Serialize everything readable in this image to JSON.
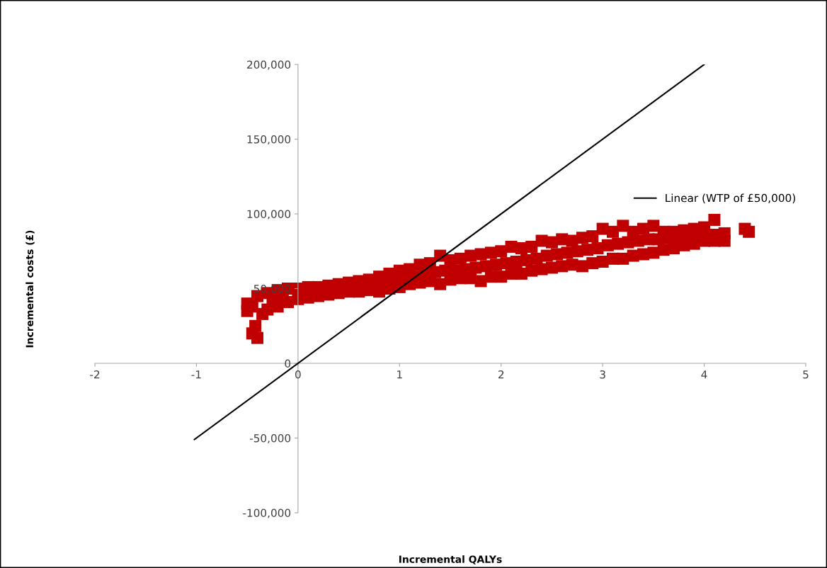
{
  "chart_data": {
    "type": "scatter",
    "xlabel": "Incremental QALYs",
    "annotations": [
      "Incremental costs (£)"
    ],
    "xlim": [
      -2,
      5
    ],
    "xticks": [
      -2,
      -1,
      0,
      1,
      2,
      3,
      4,
      5
    ],
    "ylim": [
      -100000,
      200000
    ],
    "yticks": [
      {
        "value": -100000,
        "label": "-100,000"
      },
      {
        "value": -50000,
        "label": "-50,000"
      },
      {
        "value": 0,
        "label": "0"
      },
      {
        "value": 50000,
        "label": "50,000"
      },
      {
        "value": 100000,
        "label": "100,000"
      },
      {
        "value": 150000,
        "label": "150,000"
      },
      {
        "value": 200000,
        "label": "200,000"
      }
    ],
    "grid": false,
    "legend": "right",
    "series": [
      {
        "color": "#c00000",
        "marker": "square",
        "x": [
          -0.3,
          -0.2,
          -0.1,
          0,
          0.1,
          0.2,
          0.3,
          0.4,
          0.5,
          0.6,
          0.7,
          0.8,
          0.9,
          1.0,
          1.1,
          1.2,
          1.3,
          1.4,
          1.5,
          1.6,
          1.7,
          1.8,
          1.9,
          2.0,
          2.1,
          2.2,
          2.3,
          2.4,
          2.5,
          2.6,
          2.7,
          2.8,
          2.9,
          3.0,
          3.1,
          3.2,
          3.3,
          3.4,
          3.5,
          3.6,
          3.7,
          3.8,
          3.9,
          4.0,
          4.1,
          4.2,
          -0.3,
          -0.2,
          -0.1,
          0,
          0.1,
          0.2,
          0.3,
          0.4,
          0.5,
          0.6,
          0.7,
          0.8,
          0.9,
          1.0,
          1.1,
          1.2,
          1.3,
          1.4,
          1.5,
          1.6,
          1.7,
          1.8,
          1.9,
          2.0,
          2.1,
          2.2,
          2.3,
          2.4,
          2.5,
          2.6,
          2.7,
          2.8,
          2.9,
          3.0,
          3.1,
          3.2,
          3.3,
          3.4,
          3.5,
          3.6,
          3.7,
          3.8,
          3.9,
          4.0,
          4.1,
          4.2,
          -0.25,
          -0.15,
          0.75,
          0.85,
          0.95,
          1.05,
          1.15,
          1.25,
          1.35,
          1.45,
          1.55,
          1.65,
          1.75,
          1.85,
          1.95,
          2.05,
          2.15,
          2.25,
          2.35,
          2.45,
          2.55,
          2.65,
          2.75,
          2.85,
          2.95,
          3.05,
          3.15,
          3.25,
          3.35,
          3.45,
          3.55,
          3.65,
          3.75,
          3.85,
          3.95,
          4.05,
          4.15,
          -0.5,
          -0.5,
          -0.45,
          -0.4,
          -0.42,
          -0.45,
          -0.4,
          -0.35,
          4.4,
          4.44
        ],
        "values": [
          47000,
          49000,
          50000,
          50000,
          51000,
          51000,
          52000,
          53000,
          54000,
          55000,
          56000,
          58000,
          60000,
          62000,
          63000,
          66000,
          67000,
          72000,
          69000,
          70000,
          72000,
          73000,
          74000,
          75000,
          78000,
          77000,
          78000,
          82000,
          81000,
          83000,
          82000,
          84000,
          85000,
          90000,
          88000,
          92000,
          88000,
          90000,
          92000,
          88000,
          88000,
          89000,
          90000,
          91000,
          96000,
          87000,
          36000,
          38000,
          41000,
          43000,
          44000,
          45000,
          46000,
          47000,
          48000,
          48000,
          49000,
          48000,
          50000,
          51000,
          53000,
          54000,
          55000,
          53000,
          56000,
          57000,
          57000,
          55000,
          58000,
          58000,
          60000,
          60000,
          62000,
          63000,
          64000,
          65000,
          66000,
          65000,
          67000,
          68000,
          70000,
          70000,
          72000,
          73000,
          74000,
          76000,
          77000,
          79000,
          80000,
          82000,
          82000,
          82000,
          42000,
          44000,
          53000,
          54000,
          55000,
          57000,
          58000,
          60000,
          61000,
          62000,
          62000,
          63000,
          64000,
          65000,
          66000,
          67000,
          68000,
          69000,
          70000,
          72000,
          73000,
          74000,
          75000,
          76000,
          77000,
          79000,
          80000,
          81000,
          82000,
          83000,
          83000,
          84000,
          85000,
          85000,
          86000,
          86000,
          86000,
          40000,
          35000,
          20000,
          17000,
          25000,
          38000,
          45000,
          33000,
          90000,
          88000
        ]
      },
      {
        "type": "line",
        "name": "Linear (WTP of £50,000)",
        "color": "#000000",
        "line_style": "solid",
        "marker": "none",
        "x": [
          -1.02,
          4.0
        ],
        "values": [
          -51000,
          200000
        ]
      }
    ]
  }
}
